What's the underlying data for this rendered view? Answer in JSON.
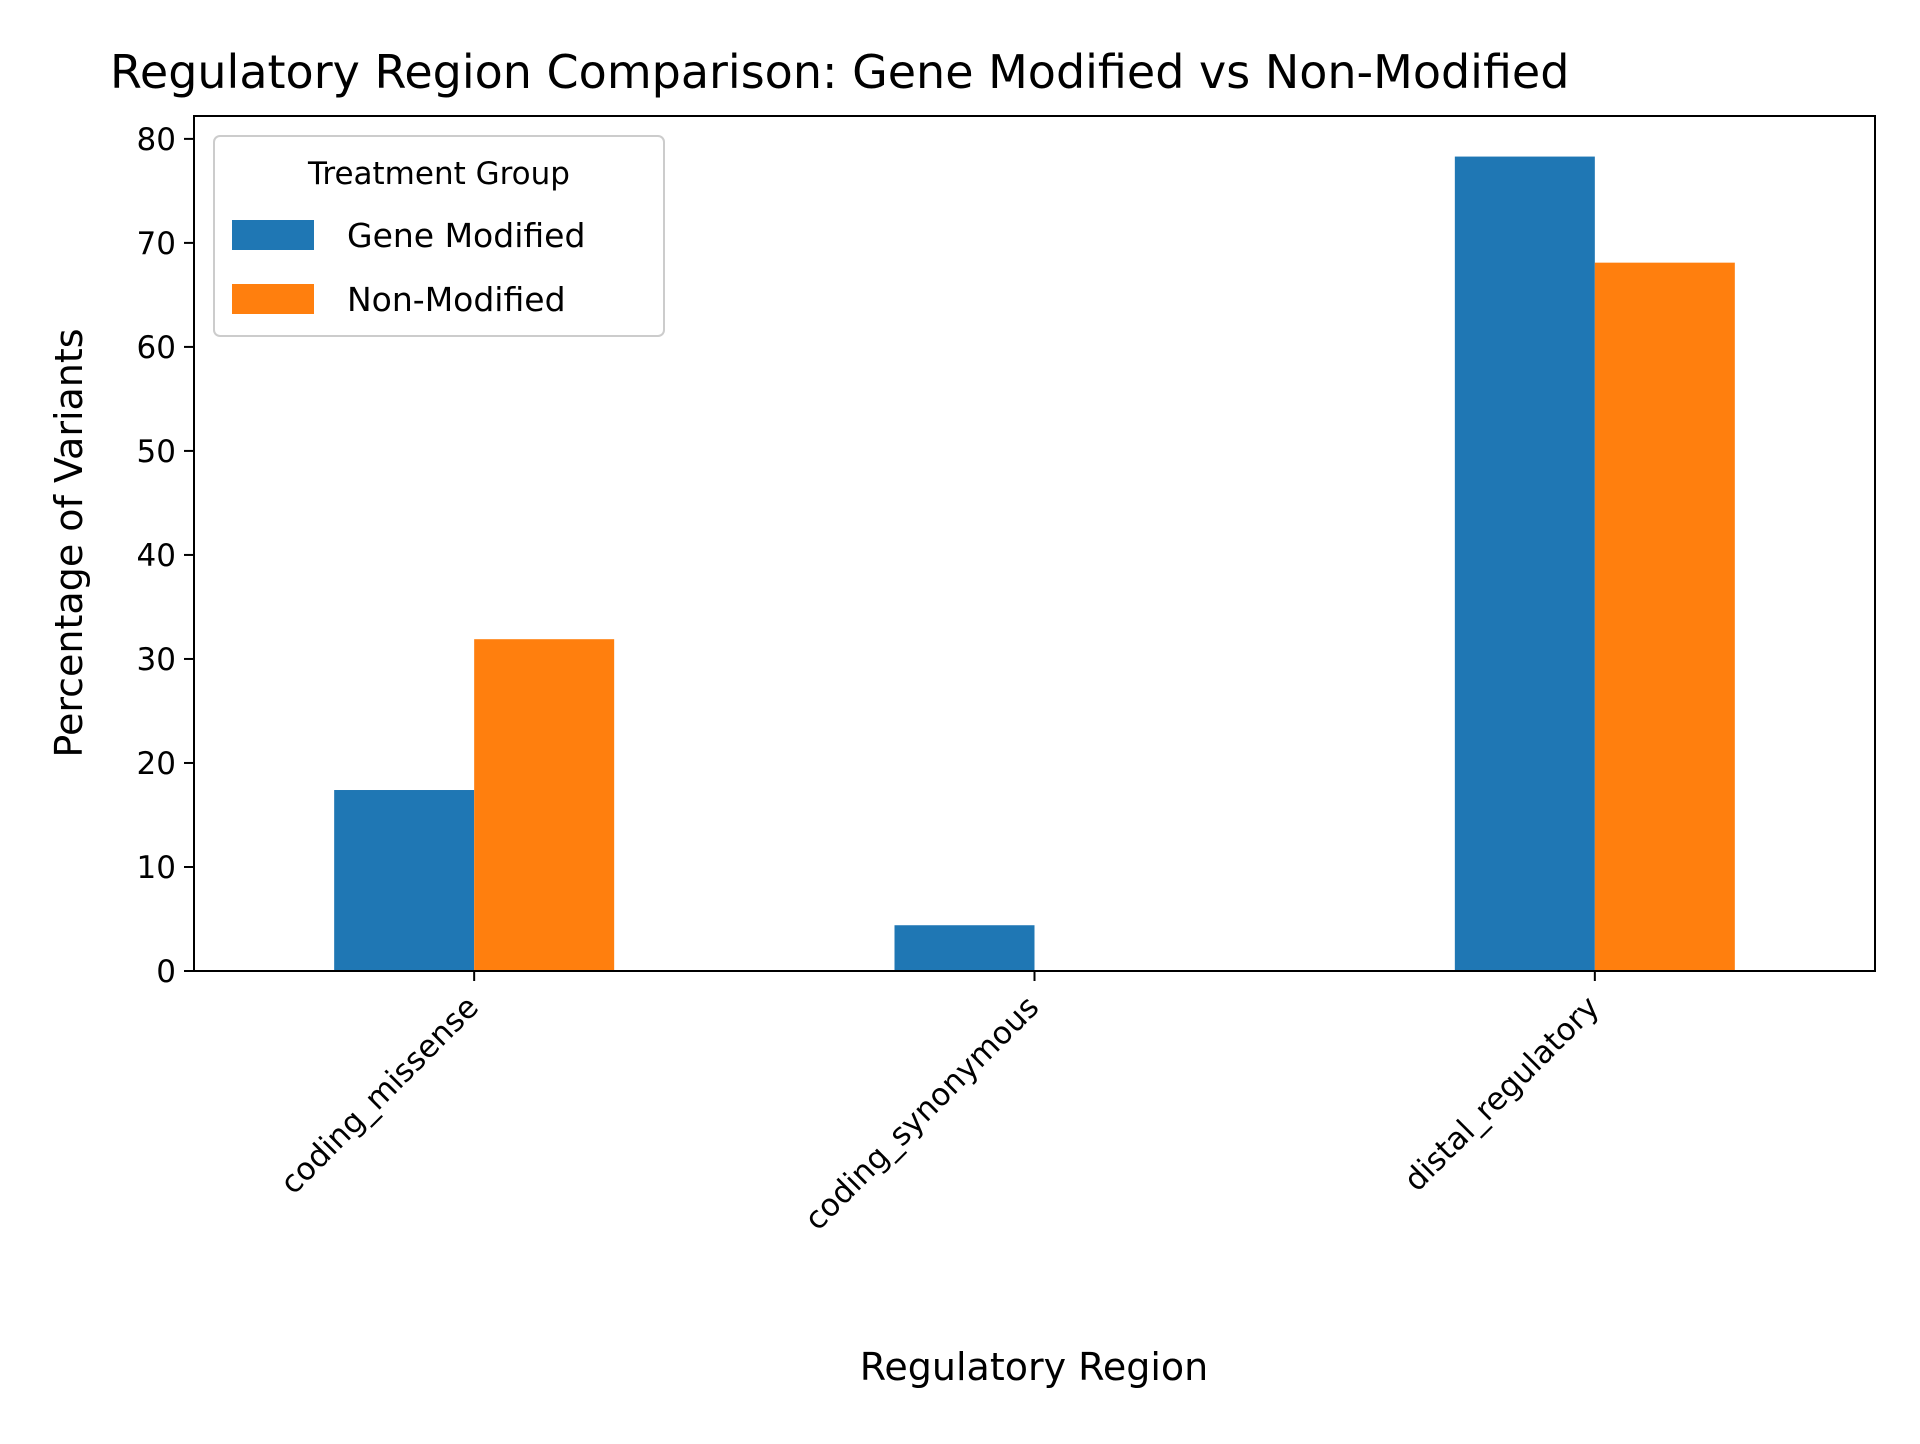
{
  "chart_data": {
    "type": "bar",
    "title": "Regulatory Region Comparison: Gene Modified vs Non-Modified",
    "xlabel": "Regulatory Region",
    "ylabel": "Percentage of Variants",
    "categories": [
      "coding_missense",
      "coding_synonymous",
      "distal_regulatory"
    ],
    "series": [
      {
        "name": "Gene Modified",
        "color": "#1f77b4",
        "values": [
          17.4,
          4.4,
          78.3
        ]
      },
      {
        "name": "Non-Modified",
        "color": "#ff7f0e",
        "values": [
          31.9,
          0,
          68.1
        ]
      }
    ],
    "ylim": [
      0,
      82.2
    ],
    "yticks": [
      0,
      10,
      20,
      30,
      40,
      50,
      60,
      70,
      80
    ],
    "grid": false,
    "legend": {
      "title": "Treatment Group",
      "placement": "top-left"
    }
  }
}
